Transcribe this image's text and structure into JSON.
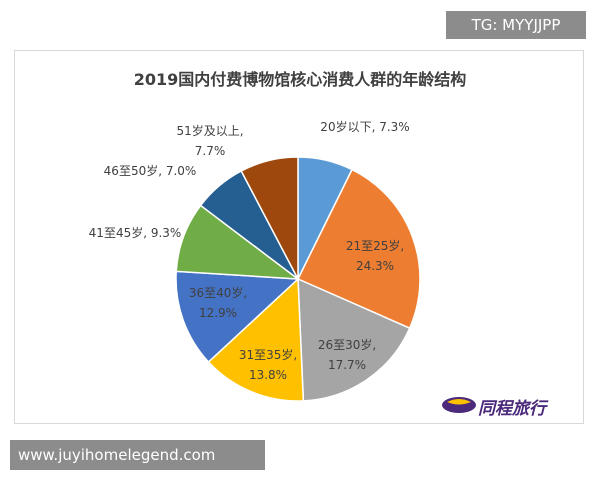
{
  "watermark": "TG: MYYJJPP",
  "footer": "www.juyihomelegend.com",
  "logo": "同程旅行",
  "chart_data": {
    "type": "pie",
    "title": "2019国内付费博物馆核心消费人群的年龄结构",
    "values": [
      7.3,
      24.3,
      17.7,
      13.8,
      12.9,
      9.3,
      7.0,
      7.7
    ],
    "value_labels": [
      "20岁以下, 7.3%",
      "21至25岁, 24.3%",
      "26至30岁, 17.7%",
      "31至35岁, 13.8%",
      "36至40岁, 12.9%",
      "41至45岁, 9.3%",
      "46至50岁, 7.0%",
      "51岁及以上, 7.7%"
    ],
    "colors": [
      "#5b9bd5",
      "#ed7d31",
      "#a5a5a5",
      "#ffc000",
      "#4472c4",
      "#70ad47",
      "#255e91",
      "#9e480e"
    ]
  }
}
